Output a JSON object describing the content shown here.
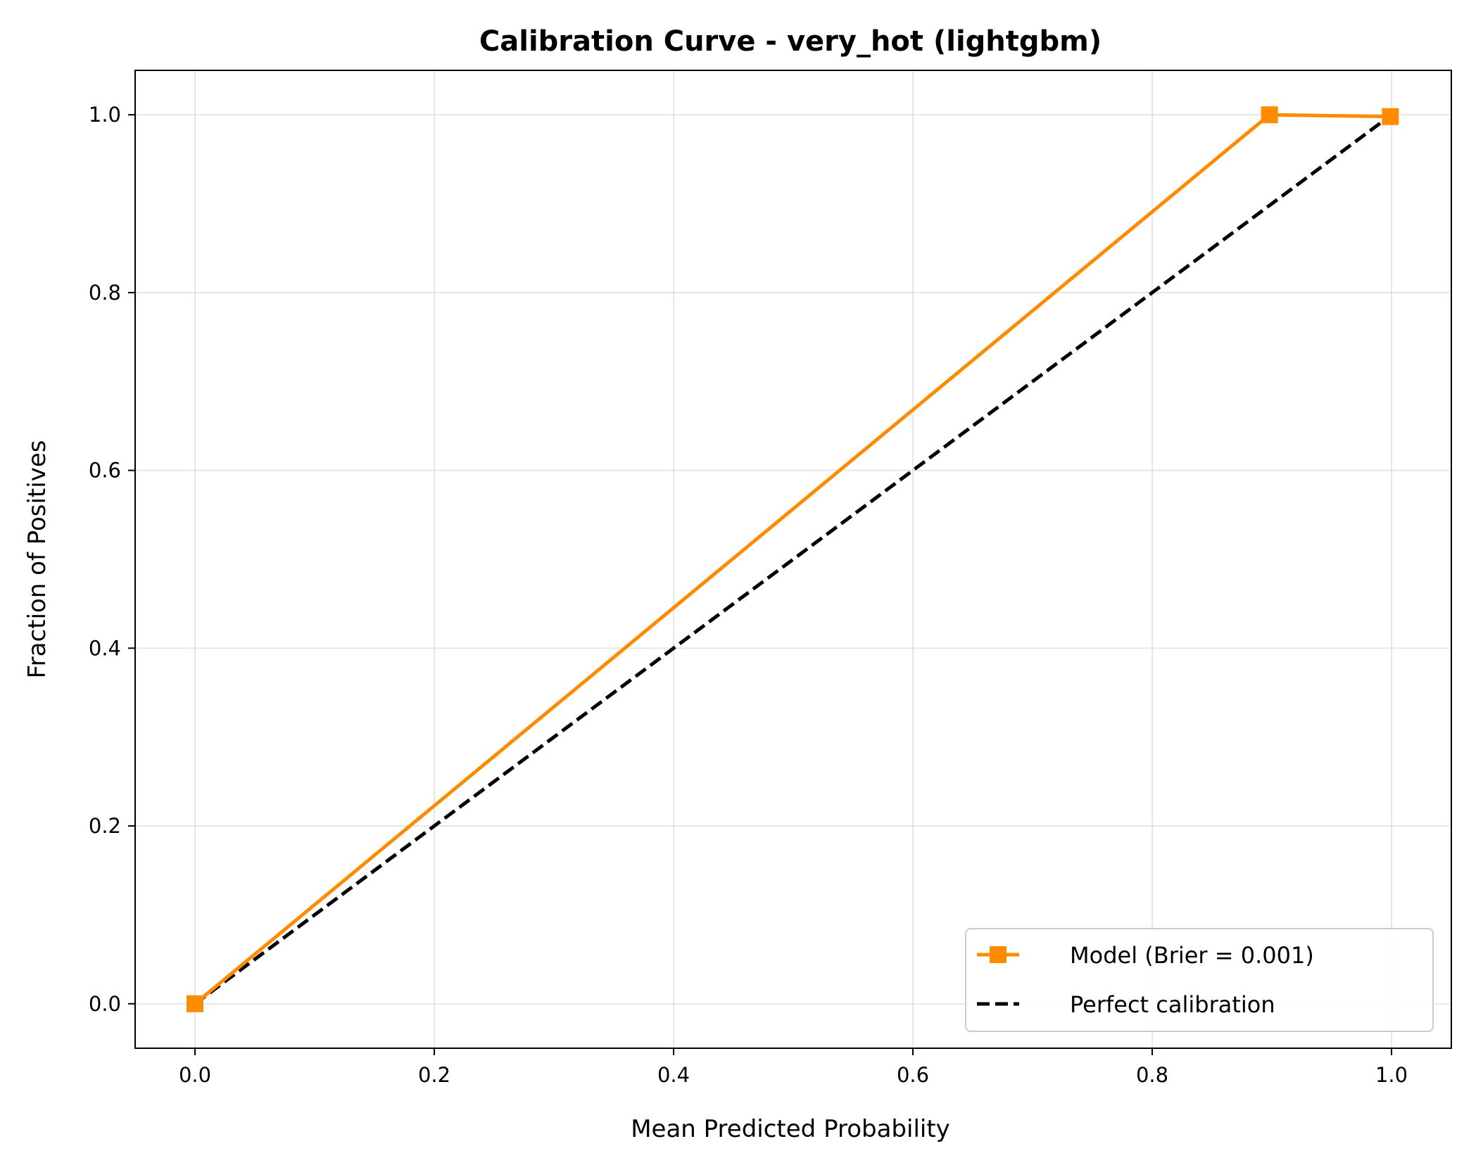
{
  "chart_data": {
    "type": "line",
    "title": "Calibration Curve - very_hot (lightgbm)",
    "xlabel": "Mean Predicted Probability",
    "ylabel": "Fraction of Positives",
    "xlim": [
      -0.05,
      1.05
    ],
    "ylim": [
      -0.05,
      1.05
    ],
    "xticks": [
      "0.0",
      "0.2",
      "0.4",
      "0.6",
      "0.8",
      "1.0"
    ],
    "yticks": [
      "0.0",
      "0.2",
      "0.4",
      "0.6",
      "0.8",
      "1.0"
    ],
    "xtick_values": [
      0.0,
      0.2,
      0.4,
      0.6,
      0.8,
      1.0
    ],
    "ytick_values": [
      0.0,
      0.2,
      0.4,
      0.6,
      0.8,
      1.0
    ],
    "grid": true,
    "legend_position": "bottom-right",
    "series": [
      {
        "name": "Model (Brier = 0.001)",
        "color": "#ff8c00",
        "style": "solid",
        "marker": "square",
        "x": [
          0.0,
          0.898,
          0.999
        ],
        "y": [
          0.0,
          1.0,
          0.998
        ]
      },
      {
        "name": "Perfect calibration",
        "color": "#000000",
        "style": "dashed",
        "marker": "none",
        "x": [
          0.0,
          1.0
        ],
        "y": [
          0.0,
          1.0
        ]
      }
    ]
  }
}
